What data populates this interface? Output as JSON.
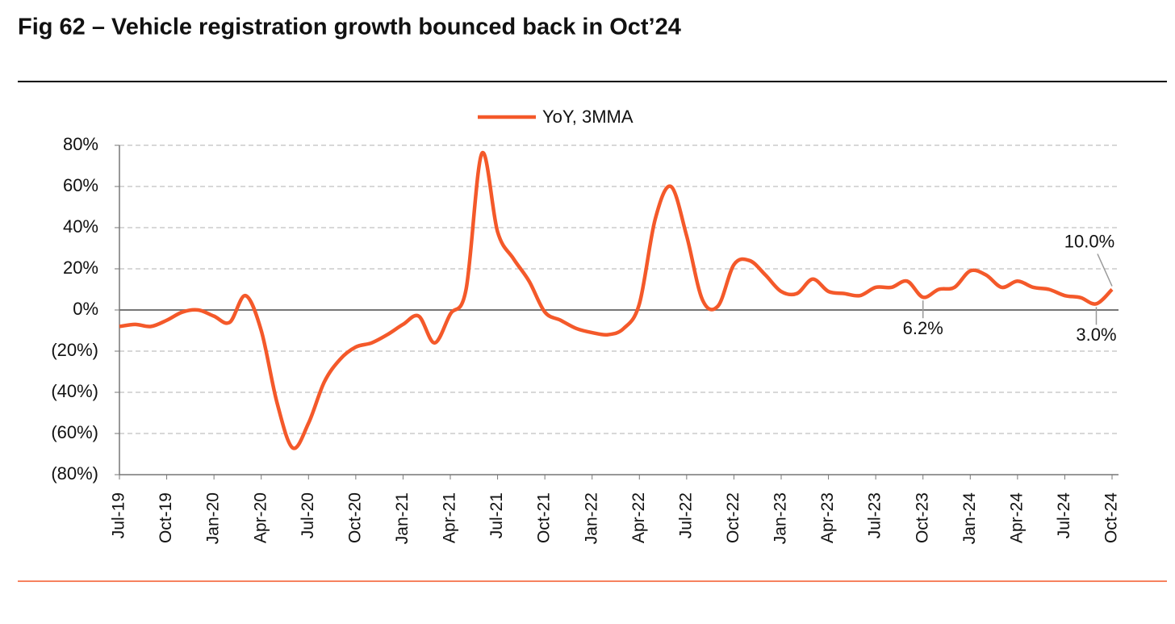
{
  "chart_data": {
    "type": "line",
    "title": "Fig 62 – Vehicle registration growth bounced back in Oct’24",
    "categories": [
      "Jul-19",
      null,
      null,
      "Oct-19",
      null,
      null,
      "Jan-20",
      null,
      null,
      "Apr-20",
      null,
      null,
      "Jul-20",
      null,
      null,
      "Oct-20",
      null,
      null,
      "Jan-21",
      null,
      null,
      "Apr-21",
      null,
      null,
      "Jul-21",
      null,
      null,
      "Oct-21",
      null,
      null,
      "Jan-22",
      null,
      null,
      "Apr-22",
      null,
      null,
      "Jul-22",
      null,
      null,
      "Oct-22",
      null,
      null,
      "Jan-23",
      null,
      null,
      "Apr-23",
      null,
      null,
      "Jul-23",
      null,
      null,
      "Oct-23",
      null,
      null,
      "Jan-24",
      null,
      null,
      "Apr-24",
      null,
      null,
      "Jul-24",
      null,
      null,
      "Oct-24"
    ],
    "series": [
      {
        "name": "YoY, 3MMA",
        "color": "#f4592a",
        "values": [
          -8,
          -7,
          -8,
          -5,
          -1,
          0,
          -3,
          -6,
          7,
          -10,
          -45,
          -67,
          -55,
          -35,
          -24,
          -18,
          -16,
          -12,
          -7,
          -3,
          -16,
          -2,
          10,
          76,
          38,
          25,
          14,
          -1,
          -5,
          -9,
          -11,
          -12,
          -9,
          3,
          44,
          60,
          36,
          5,
          2,
          22,
          24,
          17,
          9,
          8,
          15,
          9,
          8,
          7,
          11,
          11,
          14,
          6.2,
          10,
          11,
          19,
          17,
          11,
          14,
          11,
          10,
          7,
          6,
          3.0,
          10.0
        ],
        "value_labels": [
          null,
          null,
          null,
          null,
          null,
          null,
          null,
          null,
          null,
          null,
          null,
          null,
          null,
          null,
          null,
          null,
          null,
          null,
          null,
          null,
          null,
          null,
          null,
          null,
          null,
          null,
          null,
          null,
          null,
          null,
          null,
          null,
          null,
          null,
          null,
          null,
          null,
          null,
          null,
          null,
          null,
          null,
          null,
          null,
          null,
          null,
          null,
          null,
          null,
          null,
          null,
          "6.2%",
          null,
          null,
          null,
          null,
          null,
          null,
          null,
          null,
          null,
          null,
          "3.0%",
          "10.0%"
        ]
      }
    ],
    "ylim": [
      -80,
      80
    ],
    "yticks": [
      {
        "value": -80,
        "label": "(80%)"
      },
      {
        "value": -60,
        "label": "(60%)"
      },
      {
        "value": -40,
        "label": "(40%)"
      },
      {
        "value": -20,
        "label": "(20%)"
      },
      {
        "value": 0,
        "label": "0%"
      },
      {
        "value": 20,
        "label": "20%"
      },
      {
        "value": 40,
        "label": "40%"
      },
      {
        "value": 60,
        "label": "60%"
      },
      {
        "value": 80,
        "label": "80%"
      }
    ],
    "grid": true,
    "legend": "top"
  }
}
